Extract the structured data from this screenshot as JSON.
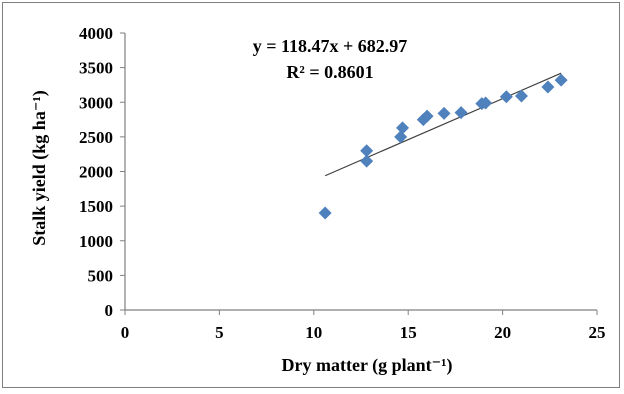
{
  "chart_data": {
    "type": "scatter",
    "title": "",
    "xlabel": "Dry matter (g plant⁻¹)",
    "ylabel": "Stalk yield (kg ha⁻¹)",
    "xlim": [
      0,
      25
    ],
    "ylim": [
      0,
      4000
    ],
    "x_ticks": [
      "0",
      "5",
      "10",
      "15",
      "20",
      "25"
    ],
    "y_ticks": [
      "0",
      "500",
      "1000",
      "1500",
      "2000",
      "2500",
      "3000",
      "3500",
      "4000"
    ],
    "grid": false,
    "legend": "none",
    "marker": "diamond",
    "marker_color": "#4f81bd",
    "trendline_color": "#404040",
    "points": [
      {
        "x": 10.6,
        "y": 1400
      },
      {
        "x": 12.8,
        "y": 2150
      },
      {
        "x": 12.8,
        "y": 2300
      },
      {
        "x": 14.6,
        "y": 2500
      },
      {
        "x": 14.7,
        "y": 2630
      },
      {
        "x": 15.8,
        "y": 2750
      },
      {
        "x": 16.0,
        "y": 2800
      },
      {
        "x": 16.9,
        "y": 2840
      },
      {
        "x": 17.8,
        "y": 2850
      },
      {
        "x": 18.9,
        "y": 2980
      },
      {
        "x": 19.1,
        "y": 2990
      },
      {
        "x": 20.2,
        "y": 3080
      },
      {
        "x": 21.0,
        "y": 3090
      },
      {
        "x": 22.4,
        "y": 3220
      },
      {
        "x": 23.1,
        "y": 3320
      }
    ],
    "trendline": {
      "type": "linear",
      "slope": 118.47,
      "intercept": 682.97,
      "x_range": [
        10.6,
        23.1
      ],
      "equation": "y = 118.47x + 682.97",
      "r_squared": "R² = 0.8601"
    }
  }
}
